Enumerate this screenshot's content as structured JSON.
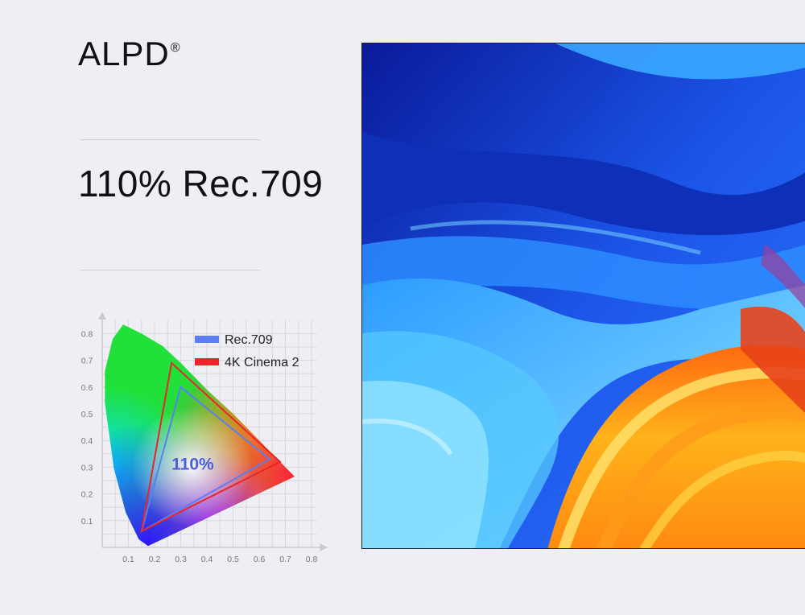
{
  "brand": {
    "name": "ALPD",
    "mark": "®"
  },
  "headline": "110% Rec.709",
  "chart_data": {
    "type": "scatter",
    "title": "",
    "xlabel": "",
    "ylabel": "",
    "xlim": [
      0,
      0.8
    ],
    "ylim": [
      0,
      0.8
    ],
    "x_ticks": [
      "0.1",
      "0.2",
      "0.3",
      "0.4",
      "0.5",
      "0.6",
      "0.7",
      "0.8"
    ],
    "y_ticks": [
      "0.1",
      "0.2",
      "0.3",
      "0.4",
      "0.5",
      "0.6",
      "0.7",
      "0.8"
    ],
    "grid": true,
    "legend_position": "top-right",
    "annotation": "110%",
    "series": [
      {
        "name": "Rec.709",
        "color": "#5b7ef0",
        "points": [
          [
            0.64,
            0.33
          ],
          [
            0.3,
            0.6
          ],
          [
            0.15,
            0.06
          ]
        ]
      },
      {
        "name": "4K Cinema 2",
        "color": "#e8262b",
        "points": [
          [
            0.68,
            0.32
          ],
          [
            0.265,
            0.69
          ],
          [
            0.15,
            0.06
          ]
        ]
      }
    ],
    "spectral_locus": [
      [
        0.175,
        0.005
      ],
      [
        0.14,
        0.03
      ],
      [
        0.09,
        0.13
      ],
      [
        0.045,
        0.295
      ],
      [
        0.01,
        0.54
      ],
      [
        0.01,
        0.66
      ],
      [
        0.04,
        0.78
      ],
      [
        0.08,
        0.834
      ],
      [
        0.15,
        0.8
      ],
      [
        0.23,
        0.754
      ],
      [
        0.3,
        0.69
      ],
      [
        0.4,
        0.59
      ],
      [
        0.5,
        0.5
      ],
      [
        0.6,
        0.4
      ],
      [
        0.735,
        0.265
      ]
    ]
  },
  "photo": {
    "palette": [
      "#1d3fd8",
      "#2a9bff",
      "#7fd8ff",
      "#ff8c1a",
      "#ffc21a",
      "#e63f1a"
    ]
  }
}
